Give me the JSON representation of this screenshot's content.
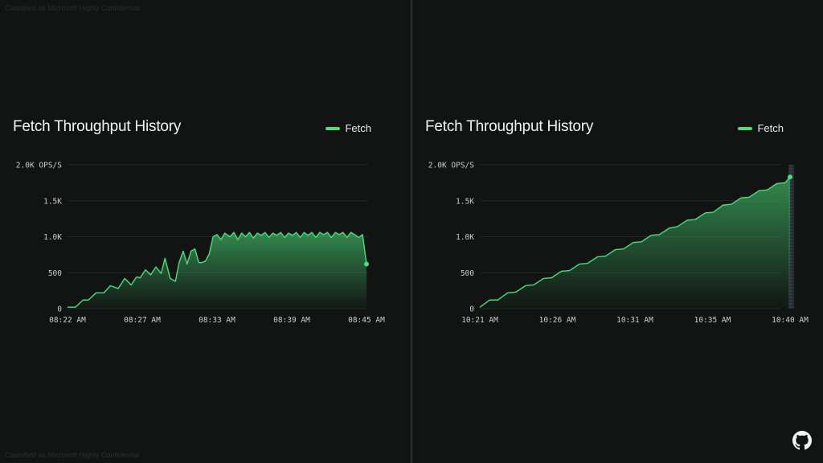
{
  "classification": "Classified as Microsoft Highly Confidential",
  "chart_data": [
    {
      "type": "area",
      "title": "Fetch Throughput History",
      "legend": "Fetch",
      "legend_position": "top-right",
      "ylim": [
        0,
        2000
      ],
      "yticks": [
        "0",
        "500",
        "1.0K",
        "1.5K",
        "2.0K OPS/S"
      ],
      "xticks": [
        "08:22 AM",
        "08:27 AM",
        "08:33 AM",
        "08:39 AM",
        "08:45 AM"
      ],
      "grid": true,
      "series": [
        {
          "name": "Fetch",
          "x_minutes_from_start": [
            0,
            0.6,
            1.2,
            1.6,
            2.2,
            2.8,
            3.3,
            3.9,
            4.4,
            4.9,
            5.3,
            5.6,
            6,
            6.4,
            6.8,
            7.2,
            7.5,
            7.9,
            8.3,
            8.6,
            8.9,
            9.2,
            9.5,
            9.8,
            10.1,
            10.3,
            10.6,
            10.9,
            11.2,
            11.5,
            11.8,
            12.1,
            12.5,
            12.8,
            13.1,
            13.4,
            13.7,
            14,
            14.3,
            14.6,
            14.9,
            15.2,
            15.5,
            15.8,
            16.1,
            16.4,
            16.7,
            17,
            17.3,
            17.6,
            17.9,
            18.2,
            18.5,
            18.8,
            19.1,
            19.4,
            19.7,
            20,
            20.3,
            20.6,
            20.9,
            21.2,
            21.5,
            21.8,
            22.1,
            22.4,
            22.7,
            23
          ],
          "values": [
            20,
            20,
            120,
            120,
            220,
            220,
            320,
            280,
            420,
            330,
            440,
            430,
            540,
            470,
            580,
            490,
            700,
            420,
            380,
            650,
            800,
            620,
            800,
            830,
            640,
            640,
            660,
            760,
            1000,
            1030,
            960,
            1050,
            1000,
            1060,
            960,
            1050,
            1000,
            1060,
            980,
            1050,
            1020,
            1060,
            990,
            1050,
            1020,
            1060,
            990,
            1050,
            1020,
            1060,
            990,
            1060,
            1020,
            1060,
            990,
            1060,
            1030,
            1060,
            990,
            1060,
            1030,
            1060,
            990,
            1060,
            1030,
            990,
            1030,
            620
          ]
        }
      ]
    },
    {
      "type": "area",
      "title": "Fetch Throughput History",
      "legend": "Fetch",
      "legend_position": "top-right",
      "ylim": [
        0,
        2000
      ],
      "yticks": [
        "0",
        "500",
        "1.0K",
        "1.5K",
        "2.0K OPS/S"
      ],
      "xticks": [
        "10:21 AM",
        "10:26 AM",
        "10:31 AM",
        "10:35 AM",
        "10:40 AM"
      ],
      "grid": true,
      "series": [
        {
          "name": "Fetch",
          "x_minutes_from_start": [
            0,
            0.6,
            1.1,
            1.7,
            2.2,
            2.8,
            3.3,
            3.9,
            4.4,
            5,
            5.5,
            6.1,
            6.6,
            7.2,
            7.7,
            8.3,
            8.8,
            9.4,
            9.9,
            10.5,
            11,
            11.6,
            12.1,
            12.7,
            13.2,
            13.8,
            14.3,
            14.9,
            15.4,
            16,
            16.5,
            17.1,
            17.6,
            18.2,
            18.7,
            19
          ],
          "values": [
            20,
            120,
            120,
            220,
            230,
            320,
            330,
            420,
            430,
            520,
            530,
            620,
            630,
            720,
            730,
            820,
            830,
            920,
            930,
            1020,
            1030,
            1120,
            1140,
            1230,
            1240,
            1330,
            1340,
            1440,
            1450,
            1540,
            1550,
            1640,
            1650,
            1740,
            1750,
            1830
          ]
        }
      ]
    }
  ]
}
